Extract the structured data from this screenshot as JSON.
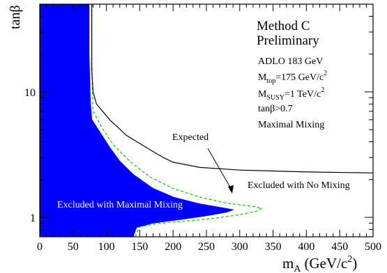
{
  "chart_data": {
    "type": "area",
    "xlabel": "m",
    "xlabel_sub": "A",
    "xlabel_unit": "(GeV/c",
    "xlabel_unit_sup": "2",
    "xlabel_unit_close": ")",
    "ylabel": "tanβ",
    "xlim": [
      0,
      500
    ],
    "ylim": [
      0.7,
      50
    ],
    "yscale": "log",
    "x_ticks": [
      0,
      50,
      100,
      150,
      200,
      250,
      300,
      350,
      400,
      450,
      500
    ],
    "y_ticks": [
      1,
      10
    ],
    "header": {
      "line1": "Method C",
      "line2": "Preliminary"
    },
    "info": {
      "adlo": "ADLO 183 GeV",
      "mtop_pre": "M",
      "mtop_sub": "top",
      "mtop_val": "=175 GeV/c",
      "mtop_sup": "2",
      "msusy_pre": "M",
      "msusy_sub": "SUSY",
      "msusy_val": "=1 TeV/c",
      "msusy_sup": "2",
      "tanb": "tanβ>0.7",
      "mixing": "Maximal Mixing"
    },
    "annotations": {
      "expected": "Expected",
      "excluded_no_mixing": "Excluded with No Mixing",
      "excluded_max_mixing": "Excluded with Maximal Mixing"
    },
    "regions": {
      "excluded_max_mixing": [
        [
          0,
          0.7
        ],
        [
          0,
          50
        ],
        [
          74,
          50
        ],
        [
          74,
          20
        ],
        [
          75,
          12
        ],
        [
          76,
          8
        ],
        [
          78,
          6
        ],
        [
          90,
          4.8
        ],
        [
          105,
          3.6
        ],
        [
          120,
          2.8
        ],
        [
          140,
          2.2
        ],
        [
          170,
          1.7
        ],
        [
          200,
          1.45
        ],
        [
          240,
          1.28
        ],
        [
          270,
          1.2
        ],
        [
          290,
          1.15
        ],
        [
          280,
          1.1
        ],
        [
          250,
          1.03
        ],
        [
          210,
          0.96
        ],
        [
          170,
          0.9
        ],
        [
          145,
          0.83
        ],
        [
          140,
          0.7
        ]
      ]
    },
    "curves": {
      "expected_max_mixing": [
        [
          78,
          50
        ],
        [
          78,
          20
        ],
        [
          79,
          10
        ],
        [
          80,
          7
        ],
        [
          95,
          5
        ],
        [
          110,
          3.8
        ],
        [
          135,
          2.8
        ],
        [
          165,
          2.1
        ],
        [
          200,
          1.7
        ],
        [
          240,
          1.45
        ],
        [
          280,
          1.3
        ],
        [
          320,
          1.22
        ],
        [
          333,
          1.18
        ],
        [
          325,
          1.12
        ],
        [
          300,
          1.05
        ],
        [
          260,
          0.98
        ],
        [
          215,
          0.93
        ],
        [
          175,
          0.89
        ],
        [
          150,
          0.84
        ],
        [
          143,
          0.7
        ]
      ],
      "observed_no_mixing": [
        [
          78,
          50
        ],
        [
          78,
          15
        ],
        [
          80,
          10
        ],
        [
          85,
          8
        ],
        [
          105,
          6
        ],
        [
          130,
          4.5
        ],
        [
          160,
          3.6
        ],
        [
          185,
          3.0
        ],
        [
          200,
          2.75
        ],
        [
          240,
          2.5
        ],
        [
          300,
          2.38
        ],
        [
          400,
          2.3
        ],
        [
          500,
          2.26
        ]
      ]
    },
    "colors": {
      "excluded_fill": "#0000ff",
      "expected_line": "#00cc00",
      "observed_line": "#000000",
      "excluded_label_text": "#ffffff"
    }
  }
}
